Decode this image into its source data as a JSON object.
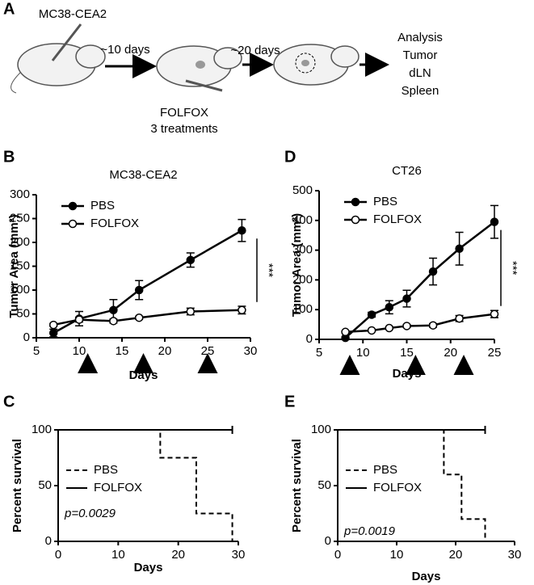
{
  "schematic": {
    "panel": "A",
    "cell_line": "MC38-CEA2",
    "step1": "~10 days",
    "step2": "~20 days",
    "drug": "FOLFOX",
    "drug_note": "3 treatments",
    "outcome": [
      "Analysis",
      "Tumor",
      "dLN",
      "Spleen"
    ]
  },
  "chart_data": [
    {
      "type": "line",
      "panel": "B",
      "title": "MC38-CEA2",
      "xlabel": "Days",
      "ylabel": "Tumor Area (mm²)",
      "xlim": [
        5,
        30
      ],
      "xticks": [
        5,
        10,
        15,
        20,
        25,
        30
      ],
      "ylim": [
        0,
        300
      ],
      "yticks": [
        0,
        50,
        100,
        150,
        200,
        250,
        300
      ],
      "series": [
        {
          "name": "PBS",
          "color": "#000000",
          "marker": "filled",
          "x": [
            7,
            10,
            14,
            17,
            23,
            29
          ],
          "values": [
            10,
            40,
            58,
            100,
            163,
            225
          ],
          "errors": [
            8,
            15,
            22,
            20,
            15,
            23
          ]
        },
        {
          "name": "FOLFOX",
          "color": "#000000",
          "marker": "open",
          "x": [
            7,
            10,
            14,
            17,
            23,
            29
          ],
          "values": [
            27,
            38,
            35,
            42,
            55,
            58
          ],
          "errors": [
            3,
            5,
            4,
            3,
            7,
            8
          ]
        }
      ],
      "treatment_days": [
        11,
        17.5,
        25
      ],
      "significance": "***"
    },
    {
      "type": "line",
      "panel": "D",
      "title": "CT26",
      "xlabel": "Days",
      "ylabel": "Tumor Area (mm²)",
      "xlim": [
        5,
        25
      ],
      "xticks": [
        5,
        10,
        15,
        20,
        25
      ],
      "ylim": [
        0,
        500
      ],
      "yticks": [
        0,
        100,
        200,
        300,
        400,
        500
      ],
      "series": [
        {
          "name": "PBS",
          "color": "#000000",
          "marker": "filled",
          "x": [
            8,
            11,
            13,
            15,
            18,
            21,
            25
          ],
          "values": [
            5,
            83,
            108,
            137,
            228,
            305,
            395
          ],
          "errors": [
            3,
            8,
            22,
            28,
            45,
            55,
            55
          ]
        },
        {
          "name": "FOLFOX",
          "color": "#000000",
          "marker": "open",
          "x": [
            8,
            11,
            13,
            15,
            18,
            21,
            25
          ],
          "values": [
            25,
            30,
            38,
            45,
            47,
            70,
            85
          ],
          "errors": [
            3,
            4,
            4,
            5,
            6,
            10,
            12
          ]
        }
      ],
      "treatment_days": [
        8.5,
        16,
        21.5
      ],
      "significance": "***"
    },
    {
      "type": "step",
      "panel": "C",
      "xlabel": "Days",
      "ylabel": "Percent survival",
      "xlim": [
        0,
        30
      ],
      "xticks": [
        0,
        10,
        20,
        30
      ],
      "ylim": [
        0,
        100
      ],
      "yticks": [
        0,
        50,
        100
      ],
      "series": [
        {
          "name": "PBS",
          "color": "#000000",
          "dashed": true,
          "x": [
            0,
            17,
            23,
            29
          ],
          "values": [
            100,
            75,
            25,
            0
          ]
        },
        {
          "name": "FOLFOX",
          "color": "#000000",
          "dashed": false,
          "x": [
            0,
            29
          ],
          "values": [
            100,
            100
          ]
        }
      ],
      "annotation": "p=0.0029"
    },
    {
      "type": "step",
      "panel": "E",
      "xlabel": "Days",
      "ylabel": "Percent survival",
      "xlim": [
        0,
        30
      ],
      "xticks": [
        0,
        10,
        20,
        30
      ],
      "ylim": [
        0,
        100
      ],
      "yticks": [
        0,
        50,
        100
      ],
      "series": [
        {
          "name": "PBS",
          "color": "#000000",
          "dashed": true,
          "x": [
            0,
            18,
            21,
            25
          ],
          "values": [
            100,
            60,
            20,
            0
          ]
        },
        {
          "name": "FOLFOX",
          "color": "#000000",
          "dashed": false,
          "x": [
            0,
            25
          ],
          "values": [
            100,
            100
          ]
        }
      ],
      "annotation": "p=0.0019"
    }
  ]
}
